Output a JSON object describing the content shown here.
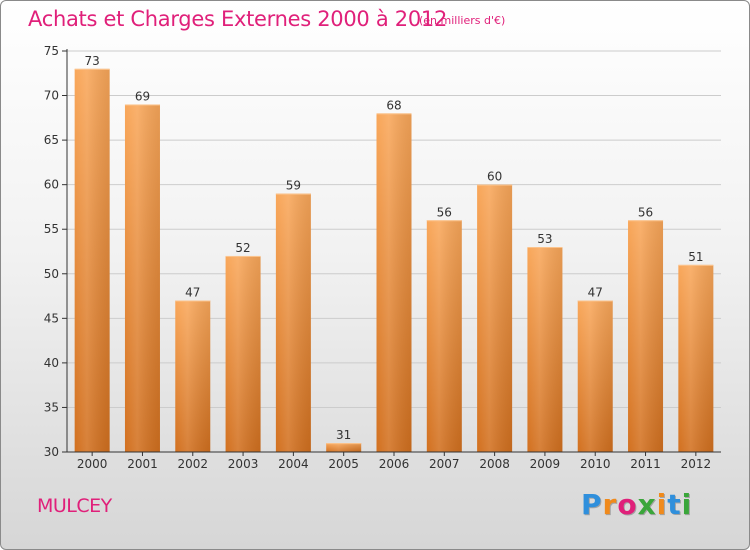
{
  "header": {
    "title": "Achats et Charges Externes 2000 à 2012",
    "subtitle": "(en milliers d'€)"
  },
  "footer": {
    "commune": "MULCEY",
    "logo_text": "Proxiti",
    "logo_colors": [
      "#2f8fdc",
      "#f08a1c",
      "#e0207a",
      "#3aa63a",
      "#f08a1c",
      "#2f8fdc",
      "#3aa63a"
    ]
  },
  "colors": {
    "accent": "#e0207a",
    "bar_top": "#f9a75a",
    "bar_bottom": "#d2701f",
    "axis": "#333333",
    "grid": "#cccccc"
  },
  "chart_data": {
    "type": "bar",
    "categories": [
      "2000",
      "2001",
      "2002",
      "2003",
      "2004",
      "2005",
      "2006",
      "2007",
      "2008",
      "2009",
      "2010",
      "2011",
      "2012"
    ],
    "values": [
      73,
      69,
      47,
      52,
      59,
      31,
      68,
      56,
      60,
      53,
      47,
      56,
      51
    ],
    "title": "Achats et Charges Externes 2000 à 2012",
    "xlabel": "",
    "ylabel": "",
    "ylim": [
      30,
      75
    ],
    "yticks": [
      30,
      35,
      40,
      45,
      50,
      55,
      60,
      65,
      70,
      75
    ],
    "grid": true,
    "data_labels": true
  }
}
